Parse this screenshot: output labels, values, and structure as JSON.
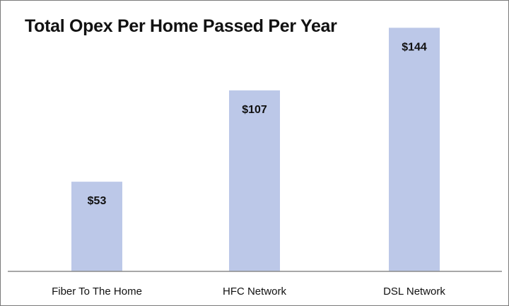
{
  "chart_data": {
    "type": "bar",
    "title": "Total Opex Per Home Passed Per Year",
    "xlabel": "",
    "ylabel": "",
    "categories": [
      "Fiber To The Home",
      "HFC Network",
      "DSL Network"
    ],
    "values": [
      53,
      107,
      144
    ],
    "value_labels": [
      "$53",
      "$107",
      "$144"
    ],
    "ylim": [
      0,
      160
    ],
    "grid": false,
    "legend": "none",
    "bar_color": "#bcc8e8"
  }
}
